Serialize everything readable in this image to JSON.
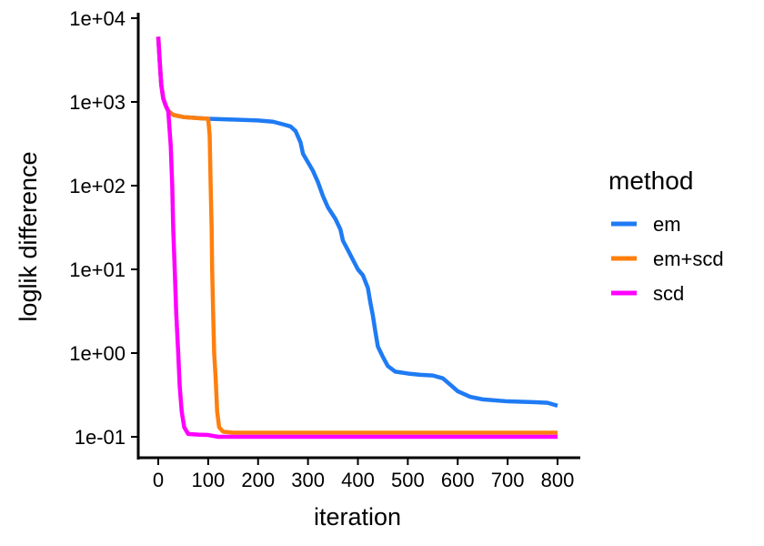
{
  "chart_data": {
    "type": "line",
    "xlabel": "iteration",
    "ylabel": "loglik difference",
    "xlim": [
      0,
      800
    ],
    "ylim": [
      0.1,
      10000
    ],
    "yscale": "log",
    "x_ticks": [
      0,
      100,
      200,
      300,
      400,
      500,
      600,
      700,
      800
    ],
    "x_tick_labels": [
      "0",
      "100",
      "200",
      "300",
      "400",
      "500",
      "600",
      "700",
      "800"
    ],
    "y_ticks": [
      0.1,
      1,
      10,
      100,
      1000,
      10000
    ],
    "y_tick_labels": [
      "1e-01",
      "1e+00",
      "1e+01",
      "1e+02",
      "1e+03",
      "1e+04"
    ],
    "grid": false,
    "legend": {
      "title": "method",
      "position": "right"
    },
    "series": [
      {
        "name": "em",
        "color": "#1F7BF4",
        "points": [
          [
            0,
            6000
          ],
          [
            3,
            3000
          ],
          [
            6,
            1600
          ],
          [
            10,
            1100
          ],
          [
            15,
            900
          ],
          [
            20,
            780
          ],
          [
            30,
            700
          ],
          [
            50,
            660
          ],
          [
            100,
            630
          ],
          [
            150,
            615
          ],
          [
            200,
            600
          ],
          [
            230,
            580
          ],
          [
            250,
            540
          ],
          [
            265,
            510
          ],
          [
            275,
            450
          ],
          [
            285,
            330
          ],
          [
            290,
            240
          ],
          [
            300,
            190
          ],
          [
            310,
            150
          ],
          [
            320,
            110
          ],
          [
            330,
            75
          ],
          [
            340,
            55
          ],
          [
            355,
            40
          ],
          [
            365,
            30
          ],
          [
            370,
            22
          ],
          [
            380,
            17
          ],
          [
            390,
            13
          ],
          [
            400,
            10
          ],
          [
            410,
            8.5
          ],
          [
            420,
            6
          ],
          [
            425,
            4
          ],
          [
            430,
            2.8
          ],
          [
            435,
            1.8
          ],
          [
            440,
            1.2
          ],
          [
            450,
            0.9
          ],
          [
            460,
            0.7
          ],
          [
            475,
            0.6
          ],
          [
            500,
            0.57
          ],
          [
            525,
            0.55
          ],
          [
            550,
            0.54
          ],
          [
            570,
            0.5
          ],
          [
            585,
            0.42
          ],
          [
            600,
            0.35
          ],
          [
            625,
            0.3
          ],
          [
            650,
            0.28
          ],
          [
            700,
            0.265
          ],
          [
            750,
            0.26
          ],
          [
            780,
            0.255
          ],
          [
            800,
            0.235
          ]
        ]
      },
      {
        "name": "em+scd",
        "color": "#FF7F0E",
        "points": [
          [
            0,
            6000
          ],
          [
            3,
            3000
          ],
          [
            6,
            1600
          ],
          [
            10,
            1100
          ],
          [
            15,
            900
          ],
          [
            20,
            780
          ],
          [
            30,
            700
          ],
          [
            50,
            660
          ],
          [
            80,
            640
          ],
          [
            100,
            630
          ],
          [
            103,
            400
          ],
          [
            105,
            100
          ],
          [
            107,
            30
          ],
          [
            108,
            10
          ],
          [
            110,
            3
          ],
          [
            112,
            1
          ],
          [
            115,
            0.5
          ],
          [
            118,
            0.2
          ],
          [
            122,
            0.13
          ],
          [
            130,
            0.115
          ],
          [
            150,
            0.112
          ],
          [
            300,
            0.112
          ],
          [
            500,
            0.112
          ],
          [
            800,
            0.112
          ]
        ]
      },
      {
        "name": "scd",
        "color": "#FF00FF",
        "points": [
          [
            0,
            6000
          ],
          [
            3,
            3000
          ],
          [
            6,
            1600
          ],
          [
            10,
            1100
          ],
          [
            15,
            900
          ],
          [
            20,
            780
          ],
          [
            25,
            300
          ],
          [
            28,
            100
          ],
          [
            30,
            30
          ],
          [
            33,
            10
          ],
          [
            36,
            3
          ],
          [
            40,
            1
          ],
          [
            43,
            0.4
          ],
          [
            47,
            0.2
          ],
          [
            52,
            0.13
          ],
          [
            60,
            0.108
          ],
          [
            80,
            0.106
          ],
          [
            100,
            0.105
          ],
          [
            120,
            0.1
          ],
          [
            300,
            0.1
          ],
          [
            500,
            0.1
          ],
          [
            800,
            0.1
          ]
        ]
      }
    ]
  }
}
